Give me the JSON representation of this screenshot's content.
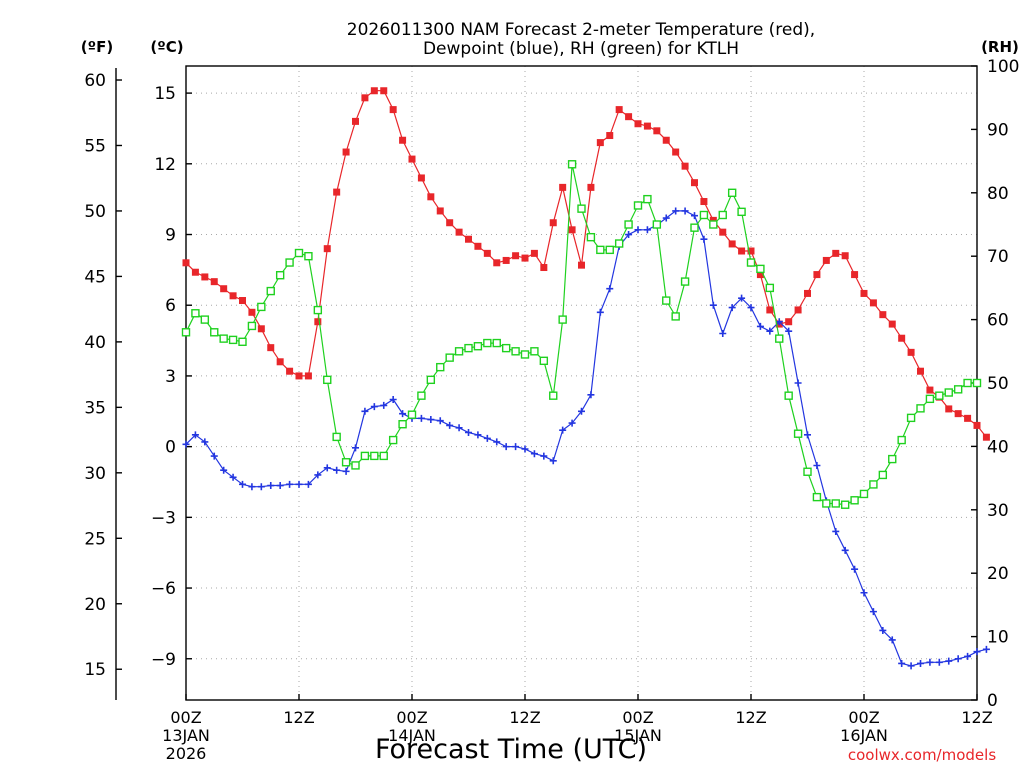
{
  "chart_data": {
    "type": "line",
    "title": "2026011300 NAM Forecast 2-meter Temperature (red),",
    "subtitle": "Dewpoint (blue), RH (green) for KTLH",
    "xlabel": "Forecast Time (UTC)",
    "credit": "coolwx.com/models",
    "unit_labels": {
      "left_outer": "(ºF)",
      "left_inner": "(ºC)",
      "right": "(RH)"
    },
    "x_range_hours": [
      0,
      84
    ],
    "x_ticks": [
      {
        "hour": 0,
        "line1": "00Z",
        "line2": "13JAN",
        "line3": "2026"
      },
      {
        "hour": 12,
        "line1": "12Z",
        "line2": "",
        "line3": ""
      },
      {
        "hour": 24,
        "line1": "00Z",
        "line2": "14JAN",
        "line3": ""
      },
      {
        "hour": 36,
        "line1": "12Z",
        "line2": "",
        "line3": ""
      },
      {
        "hour": 48,
        "line1": "00Z",
        "line2": "15JAN",
        "line3": ""
      },
      {
        "hour": 60,
        "line1": "12Z",
        "line2": "",
        "line3": ""
      },
      {
        "hour": 72,
        "line1": "00Z",
        "line2": "16JAN",
        "line3": ""
      },
      {
        "hour": 84,
        "line1": "12Z",
        "line2": "",
        "line3": ""
      }
    ],
    "celsius_axis": {
      "ylim": [
        -10.75,
        16.15
      ],
      "ticks": [
        15,
        12,
        9,
        6,
        3,
        0,
        -3,
        -6,
        -9
      ]
    },
    "fahrenheit_axis": {
      "ticks": [
        60,
        55,
        50,
        45,
        40,
        35,
        30,
        25,
        20,
        15
      ]
    },
    "rh_axis": {
      "ylim": [
        0,
        100
      ],
      "ticks": [
        100,
        90,
        80,
        70,
        60,
        50,
        40,
        30,
        20,
        10,
        0
      ]
    },
    "grid": true,
    "series": [
      {
        "name": "Temperature",
        "axis": "celsius",
        "color": "#e8262a",
        "marker": "filled-square",
        "points": [
          [
            0,
            7.8
          ],
          [
            1,
            7.4
          ],
          [
            2,
            7.2
          ],
          [
            3,
            7.0
          ],
          [
            4,
            6.7
          ],
          [
            5,
            6.4
          ],
          [
            6,
            6.2
          ],
          [
            7,
            5.7
          ],
          [
            8,
            5.0
          ],
          [
            9,
            4.2
          ],
          [
            10,
            3.6
          ],
          [
            11,
            3.2
          ],
          [
            12,
            3.0
          ],
          [
            13,
            3.0
          ],
          [
            14,
            5.3
          ],
          [
            15,
            8.4
          ],
          [
            16,
            10.8
          ],
          [
            17,
            12.5
          ],
          [
            18,
            13.8
          ],
          [
            19,
            14.8
          ],
          [
            20,
            15.1
          ],
          [
            21,
            15.1
          ],
          [
            22,
            14.3
          ],
          [
            23,
            13.0
          ],
          [
            24,
            12.2
          ],
          [
            25,
            11.4
          ],
          [
            26,
            10.6
          ],
          [
            27,
            10.0
          ],
          [
            28,
            9.5
          ],
          [
            29,
            9.1
          ],
          [
            30,
            8.8
          ],
          [
            31,
            8.5
          ],
          [
            32,
            8.2
          ],
          [
            33,
            7.8
          ],
          [
            34,
            7.9
          ],
          [
            35,
            8.1
          ],
          [
            36,
            8.0
          ],
          [
            37,
            8.2
          ],
          [
            38,
            7.6
          ],
          [
            39,
            9.5
          ],
          [
            40,
            11.0
          ],
          [
            41,
            9.2
          ],
          [
            42,
            7.7
          ],
          [
            43,
            11.0
          ],
          [
            44,
            12.9
          ],
          [
            45,
            13.2
          ],
          [
            46,
            14.3
          ],
          [
            47,
            14.0
          ],
          [
            48,
            13.7
          ],
          [
            49,
            13.6
          ],
          [
            50,
            13.4
          ],
          [
            51,
            13.0
          ],
          [
            52,
            12.5
          ],
          [
            53,
            11.9
          ],
          [
            54,
            11.2
          ],
          [
            55,
            10.4
          ],
          [
            56,
            9.6
          ],
          [
            57,
            9.1
          ],
          [
            58,
            8.6
          ],
          [
            59,
            8.3
          ],
          [
            60,
            8.3
          ],
          [
            61,
            7.3
          ],
          [
            62,
            5.8
          ],
          [
            63,
            5.2
          ],
          [
            64,
            5.3
          ],
          [
            65,
            5.8
          ],
          [
            66,
            6.5
          ],
          [
            67,
            7.3
          ],
          [
            68,
            7.9
          ],
          [
            69,
            8.2
          ],
          [
            70,
            8.1
          ],
          [
            71,
            7.3
          ],
          [
            72,
            6.5
          ],
          [
            73,
            6.1
          ],
          [
            74,
            5.6
          ],
          [
            75,
            5.2
          ],
          [
            76,
            4.6
          ],
          [
            77,
            4.0
          ],
          [
            78,
            3.2
          ],
          [
            79,
            2.4
          ],
          [
            80,
            2.1
          ],
          [
            81,
            1.6
          ],
          [
            82,
            1.4
          ],
          [
            83,
            1.2
          ],
          [
            84,
            0.9
          ],
          [
            85,
            0.4
          ]
        ]
      },
      {
        "name": "Dewpoint",
        "axis": "celsius",
        "color": "#2336e0",
        "marker": "plus",
        "points": [
          [
            0,
            0.1
          ],
          [
            1,
            0.5
          ],
          [
            2,
            0.2
          ],
          [
            3,
            -0.4
          ],
          [
            4,
            -1.0
          ],
          [
            5,
            -1.3
          ],
          [
            6,
            -1.6
          ],
          [
            7,
            -1.7
          ],
          [
            8,
            -1.7
          ],
          [
            9,
            -1.65
          ],
          [
            10,
            -1.65
          ],
          [
            11,
            -1.6
          ],
          [
            12,
            -1.6
          ],
          [
            13,
            -1.6
          ],
          [
            14,
            -1.2
          ],
          [
            15,
            -0.9
          ],
          [
            16,
            -1.0
          ],
          [
            17,
            -1.05
          ],
          [
            18,
            -0.05
          ],
          [
            19,
            1.5
          ],
          [
            20,
            1.7
          ],
          [
            21,
            1.75
          ],
          [
            22,
            2.0
          ],
          [
            23,
            1.4
          ],
          [
            24,
            1.2
          ],
          [
            25,
            1.2
          ],
          [
            26,
            1.15
          ],
          [
            27,
            1.1
          ],
          [
            28,
            0.9
          ],
          [
            29,
            0.8
          ],
          [
            30,
            0.6
          ],
          [
            31,
            0.5
          ],
          [
            32,
            0.35
          ],
          [
            33,
            0.2
          ],
          [
            34,
            0.0
          ],
          [
            35,
            0.0
          ],
          [
            36,
            -0.1
          ],
          [
            37,
            -0.3
          ],
          [
            38,
            -0.4
          ],
          [
            39,
            -0.6
          ],
          [
            40,
            0.7
          ],
          [
            41,
            1.0
          ],
          [
            42,
            1.5
          ],
          [
            43,
            2.2
          ],
          [
            44,
            5.7
          ],
          [
            45,
            6.7
          ],
          [
            46,
            8.5
          ],
          [
            47,
            9.0
          ],
          [
            48,
            9.2
          ],
          [
            49,
            9.2
          ],
          [
            50,
            9.4
          ],
          [
            51,
            9.7
          ],
          [
            52,
            10.0
          ],
          [
            53,
            10.0
          ],
          [
            54,
            9.8
          ],
          [
            55,
            8.8
          ],
          [
            56,
            6.0
          ],
          [
            57,
            4.8
          ],
          [
            58,
            5.9
          ],
          [
            59,
            6.3
          ],
          [
            60,
            5.9
          ],
          [
            61,
            5.1
          ],
          [
            62,
            4.9
          ],
          [
            63,
            5.3
          ],
          [
            64,
            4.9
          ],
          [
            65,
            2.7
          ],
          [
            66,
            0.5
          ],
          [
            67,
            -0.8
          ],
          [
            68,
            -2.3
          ],
          [
            69,
            -3.6
          ],
          [
            70,
            -4.4
          ],
          [
            71,
            -5.2
          ],
          [
            72,
            -6.2
          ],
          [
            73,
            -7.0
          ],
          [
            74,
            -7.8
          ],
          [
            75,
            -8.2
          ],
          [
            76,
            -9.2
          ],
          [
            77,
            -9.3
          ],
          [
            78,
            -9.2
          ],
          [
            79,
            -9.15
          ],
          [
            80,
            -9.15
          ],
          [
            81,
            -9.1
          ],
          [
            82,
            -9.0
          ],
          [
            83,
            -8.9
          ],
          [
            84,
            -8.7
          ],
          [
            85,
            -8.6
          ]
        ]
      },
      {
        "name": "RH",
        "axis": "rh",
        "color": "#1fd11f",
        "marker": "open-square",
        "points": [
          [
            0,
            58
          ],
          [
            1,
            61
          ],
          [
            2,
            60
          ],
          [
            3,
            58
          ],
          [
            4,
            57
          ],
          [
            5,
            56.8
          ],
          [
            6,
            56.5
          ],
          [
            7,
            59
          ],
          [
            8,
            62
          ],
          [
            9,
            64.5
          ],
          [
            10,
            67
          ],
          [
            11,
            69
          ],
          [
            12,
            70.5
          ],
          [
            13,
            70
          ],
          [
            14,
            61.5
          ],
          [
            15,
            50.5
          ],
          [
            16,
            41.5
          ],
          [
            17,
            37.5
          ],
          [
            18,
            37
          ],
          [
            19,
            38.5
          ],
          [
            20,
            38.5
          ],
          [
            21,
            38.5
          ],
          [
            22,
            41
          ],
          [
            23,
            43.5
          ],
          [
            24,
            45
          ],
          [
            25,
            48
          ],
          [
            26,
            50.5
          ],
          [
            27,
            52.5
          ],
          [
            28,
            54
          ],
          [
            29,
            55
          ],
          [
            30,
            55.5
          ],
          [
            31,
            55.8
          ],
          [
            32,
            56.3
          ],
          [
            33,
            56.3
          ],
          [
            34,
            55.5
          ],
          [
            35,
            55
          ],
          [
            36,
            54.5
          ],
          [
            37,
            55
          ],
          [
            38,
            53.5
          ],
          [
            39,
            48
          ],
          [
            40,
            60
          ],
          [
            41,
            84.5
          ],
          [
            42,
            77.5
          ],
          [
            43,
            73
          ],
          [
            44,
            71
          ],
          [
            45,
            71
          ],
          [
            46,
            72
          ],
          [
            47,
            75
          ],
          [
            48,
            78
          ],
          [
            49,
            79
          ],
          [
            50,
            75
          ],
          [
            51,
            63
          ],
          [
            52,
            60.5
          ],
          [
            53,
            66
          ],
          [
            54,
            74.5
          ],
          [
            55,
            76.5
          ],
          [
            56,
            75
          ],
          [
            57,
            76.5
          ],
          [
            58,
            80
          ],
          [
            59,
            77
          ],
          [
            60,
            69
          ],
          [
            61,
            68
          ],
          [
            62,
            65
          ],
          [
            63,
            57
          ],
          [
            64,
            48
          ],
          [
            65,
            42
          ],
          [
            66,
            36
          ],
          [
            67,
            32
          ],
          [
            68,
            31
          ],
          [
            69,
            31
          ],
          [
            70,
            30.8
          ],
          [
            71,
            31.5
          ],
          [
            72,
            32.5
          ],
          [
            73,
            34
          ],
          [
            74,
            35.5
          ],
          [
            75,
            38
          ],
          [
            76,
            41
          ],
          [
            77,
            44.5
          ],
          [
            78,
            46
          ],
          [
            79,
            47.5
          ],
          [
            80,
            48
          ],
          [
            81,
            48.5
          ],
          [
            82,
            49
          ],
          [
            83,
            50
          ],
          [
            84,
            50
          ]
        ]
      }
    ]
  },
  "colors": {
    "grid": "#a8a8a8",
    "axis": "#000000",
    "credit": "#e8262a"
  }
}
